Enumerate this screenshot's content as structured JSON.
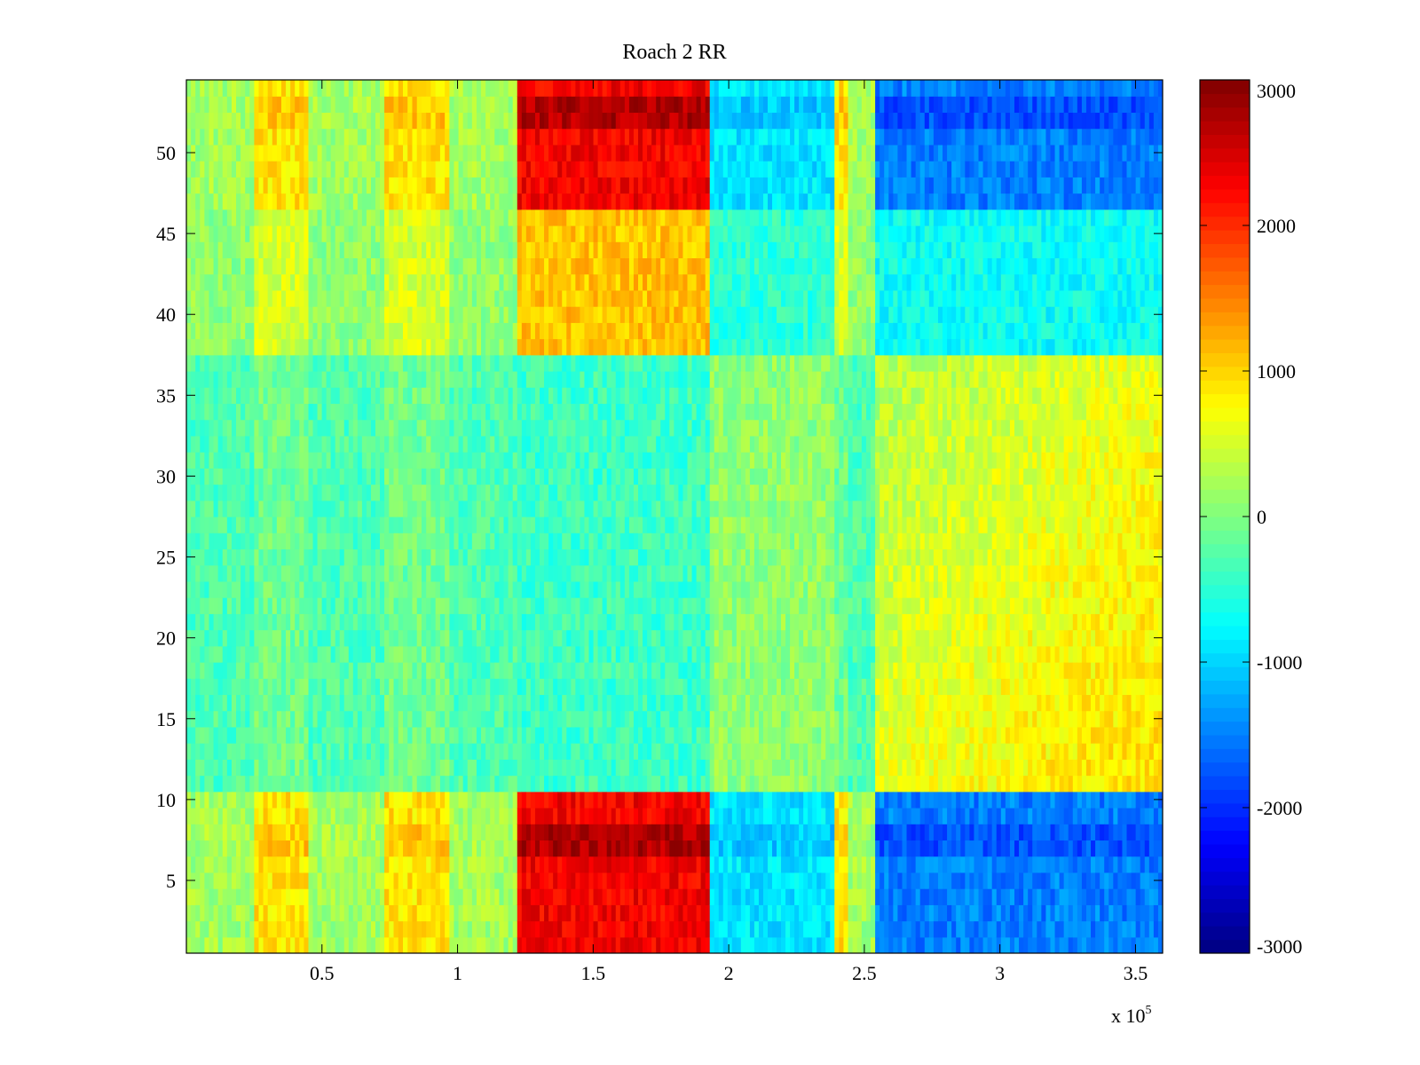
{
  "chart_data": {
    "type": "heatmap",
    "title": "Roach 2 RR",
    "xlabel": "",
    "ylabel": "",
    "x_exponent_label": "x 10",
    "x_exponent_power": "5",
    "xlim": [
      0,
      3.6
    ],
    "ylim": [
      0.5,
      54.5
    ],
    "x_ticks": [
      {
        "value": 0.5,
        "label": "0.5"
      },
      {
        "value": 1,
        "label": "1"
      },
      {
        "value": 1.5,
        "label": "1.5"
      },
      {
        "value": 2,
        "label": "2"
      },
      {
        "value": 2.5,
        "label": "2.5"
      },
      {
        "value": 3,
        "label": "3"
      },
      {
        "value": 3.5,
        "label": "3.5"
      }
    ],
    "y_ticks": [
      {
        "value": 5,
        "label": "5"
      },
      {
        "value": 10,
        "label": "10"
      },
      {
        "value": 15,
        "label": "15"
      },
      {
        "value": 20,
        "label": "20"
      },
      {
        "value": 25,
        "label": "25"
      },
      {
        "value": 30,
        "label": "30"
      },
      {
        "value": 35,
        "label": "35"
      },
      {
        "value": 40,
        "label": "40"
      },
      {
        "value": 45,
        "label": "45"
      },
      {
        "value": 50,
        "label": "50"
      }
    ],
    "colormap": "jet",
    "clim": [
      -3000,
      3000
    ],
    "colorbar_ticks": [
      {
        "value": 3000,
        "label": "3000"
      },
      {
        "value": 2000,
        "label": "2000"
      },
      {
        "value": 1000,
        "label": "1000"
      },
      {
        "value": 0,
        "label": "0"
      },
      {
        "value": -1000,
        "label": "-1000"
      },
      {
        "value": -2000,
        "label": "-2000"
      },
      {
        "value": -3000,
        "label": "-3000"
      }
    ],
    "rows": 54,
    "x_segments": [
      {
        "x_start": 0.0,
        "x_end": 0.25,
        "pattern": "base"
      },
      {
        "x_start": 0.25,
        "x_end": 0.45,
        "pattern": "warm_light"
      },
      {
        "x_start": 0.45,
        "x_end": 0.73,
        "pattern": "base"
      },
      {
        "x_start": 0.73,
        "x_end": 0.97,
        "pattern": "warm_light"
      },
      {
        "x_start": 0.97,
        "x_end": 1.22,
        "pattern": "base"
      },
      {
        "x_start": 1.22,
        "x_end": 1.93,
        "pattern": "hot"
      },
      {
        "x_start": 1.93,
        "x_end": 2.39,
        "pattern": "cool"
      },
      {
        "x_start": 2.39,
        "x_end": 2.44,
        "pattern": "warm_light"
      },
      {
        "x_start": 2.44,
        "x_end": 2.54,
        "pattern": "base"
      },
      {
        "x_start": 2.54,
        "x_end": 3.6,
        "pattern": "cold"
      }
    ],
    "row_groups": {
      "edge_bottom": [
        1,
        10
      ],
      "edge_top": [
        47,
        54
      ],
      "mid_upper": [
        38,
        46
      ],
      "mid": [
        11,
        37
      ]
    },
    "pattern_levels": {
      "base": {
        "edge": 200,
        "mid_upper": 100,
        "mid": -300
      },
      "warm_light": {
        "edge": 900,
        "mid_upper": 500,
        "mid": -100
      },
      "hot": {
        "edge": 2300,
        "mid_upper": 1100,
        "mid": -400
      },
      "cool": {
        "edge": -900,
        "mid_upper": -500,
        "mid": 100
      },
      "cold": {
        "edge": -1500,
        "mid_upper": -700,
        "mid": 600
      }
    }
  }
}
